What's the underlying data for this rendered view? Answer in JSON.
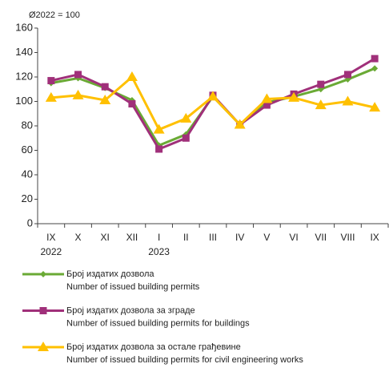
{
  "chart_data": {
    "type": "line",
    "annotation": "Ø2022 = 100",
    "categories": [
      "IX",
      "X",
      "XI",
      "XII",
      "I",
      "II",
      "III",
      "IV",
      "V",
      "VI",
      "VII",
      "VIII",
      "IX"
    ],
    "years": [
      "2022",
      null,
      null,
      null,
      "2023",
      null,
      null,
      null,
      null,
      null,
      null,
      null,
      null
    ],
    "ylim": [
      0,
      160
    ],
    "yticks": [
      0,
      20,
      40,
      60,
      80,
      100,
      120,
      140,
      160
    ],
    "series": [
      {
        "name": "Број издатих дозвола",
        "name_en": "Number  of  issued building permits",
        "color": "#6aaa35",
        "marker": "diamond",
        "values": [
          115,
          119,
          111,
          101,
          64,
          73,
          104,
          81,
          99,
          104,
          110,
          118,
          127
        ]
      },
      {
        "name": "Број издатих дозвола за зграде",
        "name_en": "Number  of  issued building permits for buildings",
        "color": "#a0307a",
        "marker": "square",
        "values": [
          117,
          122,
          112,
          98,
          61,
          70,
          105,
          81,
          97,
          106,
          114,
          122,
          135
        ]
      },
      {
        "name": "Број издатих дозвола за остале грађевине",
        "name_en": "Number  of  issued building permits for civil engineering works",
        "color": "#ffc000",
        "marker": "triangle",
        "values": [
          103,
          105,
          101,
          120,
          77,
          86,
          104,
          81,
          102,
          103,
          97,
          100,
          95
        ]
      }
    ]
  }
}
